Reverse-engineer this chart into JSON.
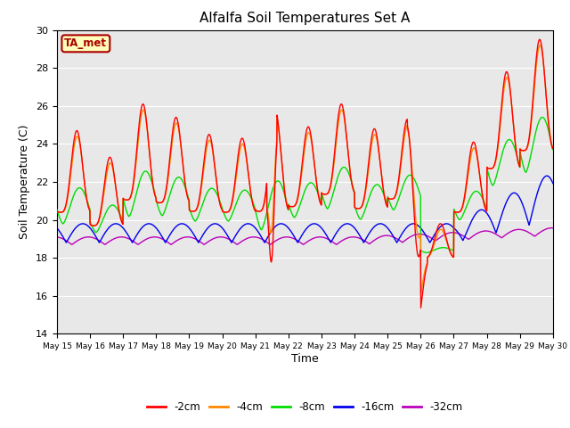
{
  "title": "Alfalfa Soil Temperatures Set A",
  "xlabel": "Time",
  "ylabel": "Soil Temperature (C)",
  "ylim": [
    14,
    30
  ],
  "yticks": [
    14,
    16,
    18,
    20,
    22,
    24,
    26,
    28,
    30
  ],
  "colors": {
    "-2cm": "#ff0000",
    "-4cm": "#ff8800",
    "-8cm": "#00dd00",
    "-16cm": "#0000ee",
    "-32cm": "#bb00bb"
  },
  "annotation_text": "TA_met",
  "annotation_color": "#aa0000",
  "annotation_bg": "#ffffbb",
  "bg_color": "#e8e8e8",
  "start_day": 15,
  "end_day": 30,
  "n_points": 2160,
  "figsize": [
    6.4,
    4.8
  ],
  "dpi": 100
}
